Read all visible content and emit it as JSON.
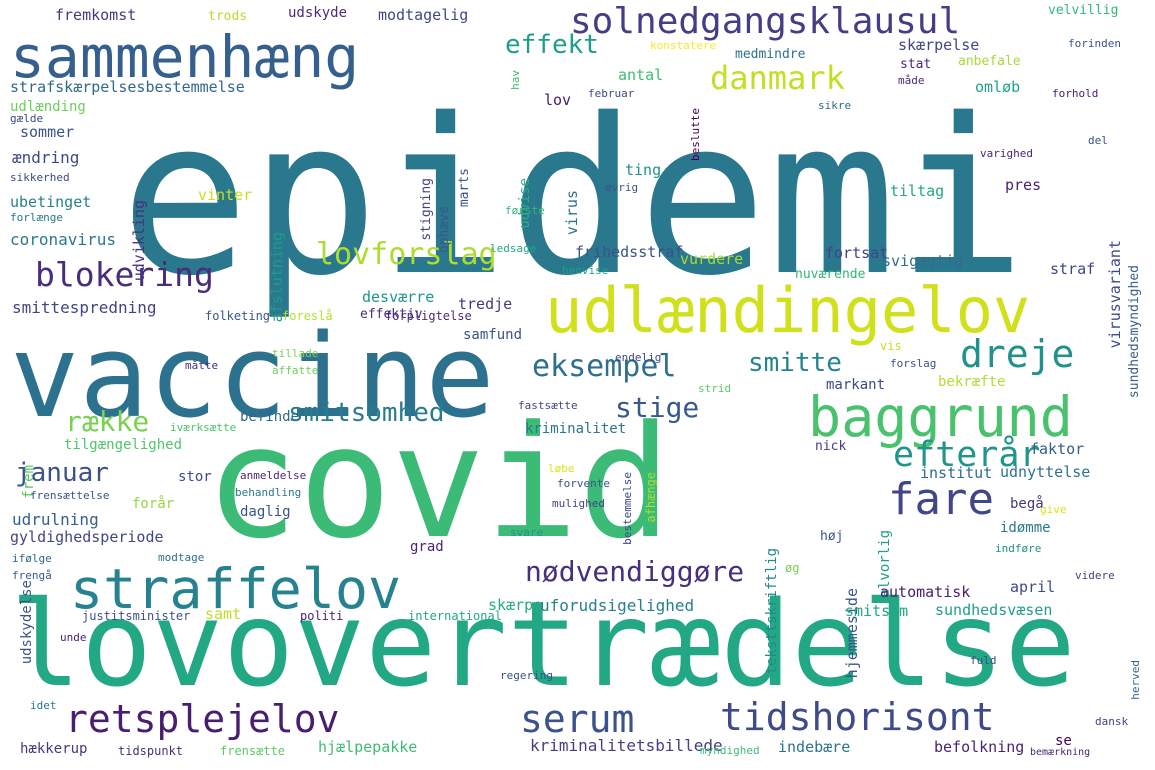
{
  "words": [
    {
      "text": "epidemi",
      "color": "#2a788e"
    },
    {
      "text": "covid",
      "color": "#3bbb75"
    },
    {
      "text": "lovovertrædelse",
      "color": "#22a884"
    },
    {
      "text": "vaccine",
      "color": "#2c728e"
    },
    {
      "text": "udlændingelov",
      "color": "#d0e11c"
    },
    {
      "text": "sammenhæng",
      "color": "#355f8d"
    },
    {
      "text": "straffelov",
      "color": "#26828e"
    },
    {
      "text": "baggrund",
      "color": "#4ac16d"
    },
    {
      "text": "retsplejelov",
      "color": "#481f70"
    },
    {
      "text": "tidshorisont",
      "color": "#3e4a89"
    },
    {
      "text": "solnedgangsklausul",
      "color": "#433e85"
    },
    {
      "text": "blokering",
      "color": "#472d7b"
    },
    {
      "text": "fare",
      "color": "#404688"
    },
    {
      "text": "efterår",
      "color": "#1f958b"
    },
    {
      "text": "dreje",
      "color": "#21918c"
    },
    {
      "text": "serum",
      "color": "#3b528b"
    },
    {
      "text": "danmark",
      "color": "#c2df23"
    },
    {
      "text": "lovforslag",
      "color": "#addc30"
    },
    {
      "text": "eksempel",
      "color": "#2d708e"
    },
    {
      "text": "smitsomhed",
      "color": "#287c8e"
    },
    {
      "text": "effekt",
      "color": "#1f9e89"
    },
    {
      "text": "nødvendiggøre",
      "color": "#46307e"
    },
    {
      "text": "stige",
      "color": "#38598c"
    },
    {
      "text": "smitte",
      "color": "#25858e"
    },
    {
      "text": "række",
      "color": "#7ad151"
    },
    {
      "text": "januar",
      "color": "#3b528b"
    },
    {
      "text": "virusvariant",
      "color": "#3e4989"
    },
    {
      "text": "sundhedsmyndighed",
      "color": "#355f8d"
    },
    {
      "text": "teksttskriftlig",
      "color": "#23888e"
    },
    {
      "text": "hjemmeside",
      "color": "#3a548c"
    },
    {
      "text": "uforudsigelighed",
      "color": "#27808e"
    },
    {
      "text": "kriminalitetsbillede",
      "color": "#433e85"
    },
    {
      "text": "hjælpepakke",
      "color": "#3fbc73"
    },
    {
      "text": "strafskærpelsesbestemmelse",
      "color": "#31688e"
    },
    {
      "text": "smittespredning",
      "color": "#414487"
    },
    {
      "text": "coronavirus",
      "color": "#2a788e"
    },
    {
      "text": "fremkomst",
      "color": "#443983"
    },
    {
      "text": "modtagelig",
      "color": "#3f4788"
    },
    {
      "text": "udskyde",
      "color": "#472c7a"
    },
    {
      "text": "trods",
      "color": "#b5de2b"
    },
    {
      "text": "velvillig",
      "color": "#35b779"
    },
    {
      "text": "skærpelse",
      "color": "#414487"
    },
    {
      "text": "stat",
      "color": "#482878"
    },
    {
      "text": "anbefale",
      "color": "#a5db36"
    },
    {
      "text": "omløb",
      "color": "#1fa287"
    },
    {
      "text": "antal",
      "color": "#3dbc74"
    },
    {
      "text": "lov",
      "color": "#481a6c"
    },
    {
      "text": "udlænding",
      "color": "#6ece58"
    },
    {
      "text": "sommer",
      "color": "#3b528b"
    },
    {
      "text": "ændring",
      "color": "#3e4989"
    },
    {
      "text": "udvikling",
      "color": "#46337f"
    },
    {
      "text": "ubetinget",
      "color": "#26818e"
    },
    {
      "text": "vinter",
      "color": "#c8e020"
    },
    {
      "text": "afslutning",
      "color": "#1e9c89"
    },
    {
      "text": "pres",
      "color": "#482173"
    },
    {
      "text": "tiltag",
      "color": "#22a884"
    },
    {
      "text": "virus",
      "color": "#2b758e"
    },
    {
      "text": "ting",
      "color": "#21918c"
    },
    {
      "text": "udvise",
      "color": "#29af7f"
    },
    {
      "text": "stigning",
      "color": "#414287"
    },
    {
      "text": "marts",
      "color": "#3a548c"
    },
    {
      "text": "ophæve",
      "color": "#39568c"
    },
    {
      "text": "frihedsstraf",
      "color": "#3b518b"
    },
    {
      "text": "fortsat",
      "color": "#404588"
    },
    {
      "text": "svigagtig",
      "color": "#2e6e8e"
    },
    {
      "text": "straf",
      "color": "#414487"
    },
    {
      "text": "nuværende",
      "color": "#32b67a"
    },
    {
      "text": "vurdere",
      "color": "#a8db34"
    },
    {
      "text": "desværre",
      "color": "#1f968b"
    },
    {
      "text": "tredje",
      "color": "#443a83"
    },
    {
      "text": "effektiv",
      "color": "#472f7d"
    },
    {
      "text": "samfund",
      "color": "#3a538b"
    },
    {
      "text": "markant",
      "color": "#3e4989"
    },
    {
      "text": "bekræfte",
      "color": "#b0dd2f"
    },
    {
      "text": "befinde",
      "color": "#31688e"
    },
    {
      "text": "kriminalitet",
      "color": "#2a778e"
    },
    {
      "text": "tilgængelighed",
      "color": "#52c569"
    },
    {
      "text": "frem",
      "color": "#56c667"
    },
    {
      "text": "faktor",
      "color": "#365c8d"
    },
    {
      "text": "institut",
      "color": "#306a8e"
    },
    {
      "text": "udnyttelse",
      "color": "#2c728e"
    },
    {
      "text": "nick",
      "color": "#433e85"
    },
    {
      "text": "stor",
      "color": "#3e4a89"
    },
    {
      "text": "forår",
      "color": "#94d741"
    },
    {
      "text": "daglig",
      "color": "#3b528b"
    },
    {
      "text": "udrulning",
      "color": "#355f8d"
    },
    {
      "text": "begå",
      "color": "#453781"
    },
    {
      "text": "gyldighedsperiode",
      "color": "#3f4788"
    },
    {
      "text": "grad",
      "color": "#482475"
    },
    {
      "text": "høj",
      "color": "#3a548c"
    },
    {
      "text": "idømme",
      "color": "#2a788e"
    },
    {
      "text": "alvorlig",
      "color": "#1fa088"
    },
    {
      "text": "automatisk",
      "color": "#482173"
    },
    {
      "text": "april",
      "color": "#3e4a89"
    },
    {
      "text": "samt",
      "color": "#c0df25"
    },
    {
      "text": "skærpe",
      "color": "#25ab82"
    },
    {
      "text": "smitsom",
      "color": "#22a785"
    },
    {
      "text": "sundhedsvæsen",
      "color": "#1f9e89"
    },
    {
      "text": "udskydelse",
      "color": "#3b528b"
    },
    {
      "text": "hækkerup",
      "color": "#453882"
    },
    {
      "text": "tidspunkt",
      "color": "#46327e"
    },
    {
      "text": "frensætte",
      "color": "#5ec962"
    },
    {
      "text": "indebære",
      "color": "#2c728e"
    },
    {
      "text": "befolkning",
      "color": "#482475"
    },
    {
      "text": "se",
      "color": "#440154"
    },
    {
      "text": "myndighed",
      "color": "#3dbc74"
    },
    {
      "text": "bemærkning",
      "color": "#482576"
    },
    {
      "text": "konstatere",
      "color": "#fde725"
    },
    {
      "text": "medmindre",
      "color": "#2d708e"
    },
    {
      "text": "forinden",
      "color": "#3b528b"
    },
    {
      "text": "hav",
      "color": "#3dbc74"
    },
    {
      "text": "måde",
      "color": "#482878"
    },
    {
      "text": "gælde",
      "color": "#3e4989"
    },
    {
      "text": "februar",
      "color": "#3f4788"
    },
    {
      "text": "forhold",
      "color": "#482173"
    },
    {
      "text": "sikre",
      "color": "#2e6e8e"
    },
    {
      "text": "beslutte",
      "color": "#440154"
    },
    {
      "text": "sikkerhed",
      "color": "#3f4788"
    },
    {
      "text": "forlænge",
      "color": "#2a788e"
    },
    {
      "text": "første",
      "color": "#35b779"
    },
    {
      "text": "øvrig",
      "color": "#3a548c"
    },
    {
      "text": "del",
      "color": "#3b528b"
    },
    {
      "text": "varighed",
      "color": "#482475"
    },
    {
      "text": "ledsage",
      "color": "#22a884"
    },
    {
      "text": "henvise",
      "color": "#1f9e89"
    },
    {
      "text": "folketing",
      "color": "#3a548c"
    },
    {
      "text": "foreslå",
      "color": "#b5de2b"
    },
    {
      "text": "forpligtelse",
      "color": "#472d7b"
    },
    {
      "text": "tillade",
      "color": "#7ad151"
    },
    {
      "text": "affatte",
      "color": "#6ece58"
    },
    {
      "text": "måtte",
      "color": "#46307e"
    },
    {
      "text": "vis",
      "color": "#c2df23"
    },
    {
      "text": "forslag",
      "color": "#3b528b"
    },
    {
      "text": "endelig",
      "color": "#3e4989"
    },
    {
      "text": "strid",
      "color": "#5ec962"
    },
    {
      "text": "fastsætte",
      "color": "#414487"
    },
    {
      "text": "iværksætte",
      "color": "#4ac16d"
    },
    {
      "text": "anmeldelse",
      "color": "#482878"
    },
    {
      "text": "løbe",
      "color": "#dde318"
    },
    {
      "text": "behandling",
      "color": "#2a788e"
    },
    {
      "text": "bestemmelse",
      "color": "#3e4989"
    },
    {
      "text": "afhænge",
      "color": "#addc30"
    },
    {
      "text": "forvente",
      "color": "#3a548c"
    },
    {
      "text": "mulighed",
      "color": "#414487"
    },
    {
      "text": "svare",
      "color": "#21918c"
    },
    {
      "text": "frensættelse",
      "color": "#3b528b"
    },
    {
      "text": "modtage",
      "color": "#2c728e"
    },
    {
      "text": "ifølge",
      "color": "#31688e"
    },
    {
      "text": "frengå",
      "color": "#365c8d"
    },
    {
      "text": "justitsminister",
      "color": "#3b528b"
    },
    {
      "text": "politi",
      "color": "#482576"
    },
    {
      "text": "international",
      "color": "#22a884"
    },
    {
      "text": "give",
      "color": "#dde318"
    },
    {
      "text": "indføre",
      "color": "#21918c"
    },
    {
      "text": "øg",
      "color": "#7ad151"
    },
    {
      "text": "videre",
      "color": "#414487"
    },
    {
      "text": "unde",
      "color": "#482475"
    },
    {
      "text": "regering",
      "color": "#3b528b"
    },
    {
      "text": "fuld",
      "color": "#3e4989"
    },
    {
      "text": "herved",
      "color": "#31688e"
    },
    {
      "text": "idet",
      "color": "#2a788e"
    },
    {
      "text": "dansk",
      "color": "#414487"
    }
  ]
}
